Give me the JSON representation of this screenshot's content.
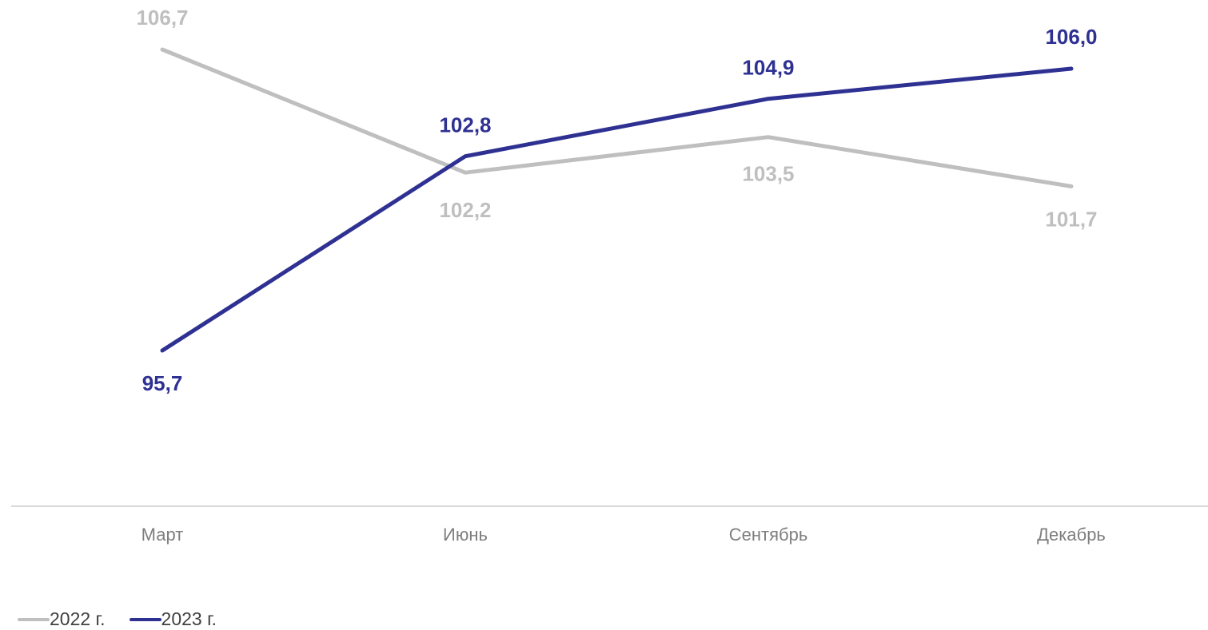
{
  "chart_data": {
    "type": "line",
    "categories": [
      "Март",
      "Июнь",
      "Сентябрь",
      "Декабрь"
    ],
    "series": [
      {
        "name": "2022 г.",
        "values": [
          106.7,
          102.2,
          103.5,
          101.7
        ],
        "labels": [
          "106,7",
          "102,2",
          "103,5",
          "101,7"
        ],
        "color": "#bfbfbf",
        "label_color": "#bfbfbf"
      },
      {
        "name": "2023 г.",
        "values": [
          95.7,
          102.8,
          104.9,
          106.0
        ],
        "labels": [
          "95,7",
          "102,8",
          "104,9",
          "106,0"
        ],
        "color": "#2e3192",
        "label_color": "#2e3192"
      }
    ],
    "title": "",
    "xlabel": "",
    "ylabel": "",
    "ylim": [
      90,
      108
    ],
    "grid": false,
    "legend_position": "bottom-left",
    "axis_color": "#d9d9d9"
  }
}
